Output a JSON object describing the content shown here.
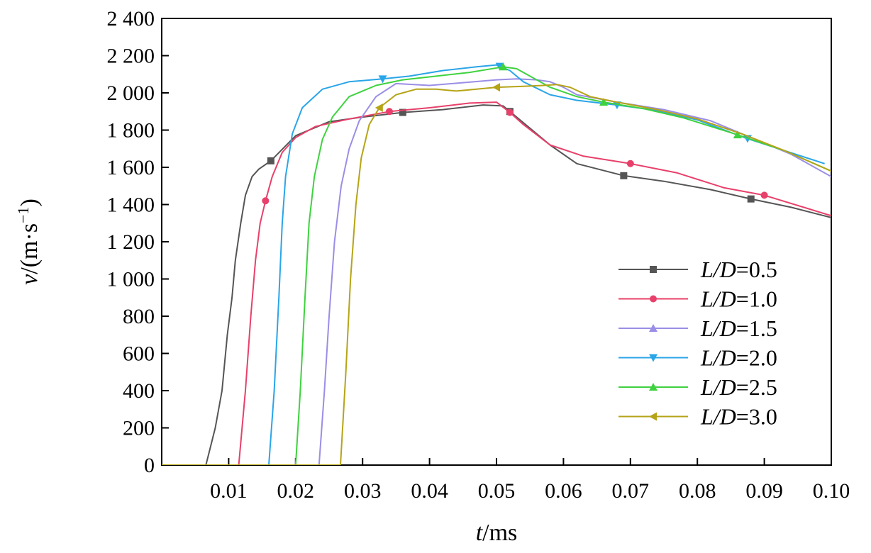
{
  "chart_data": {
    "type": "line",
    "title": "",
    "xlabel_var": "t",
    "xlabel_unit": "/ms",
    "ylabel_var": "v",
    "ylabel_unit": "/(m·s",
    "ylabel_exp": "−1",
    "ylabel_close": ")",
    "xlim": [
      0,
      0.1
    ],
    "ylim": [
      0,
      2400
    ],
    "x_ticks": [
      0.01,
      0.02,
      0.03,
      0.04,
      0.05,
      0.06,
      0.07,
      0.08,
      0.09,
      0.1
    ],
    "x_tick_labels": [
      "0.01",
      "0.02",
      "0.03",
      "0.04",
      "0.05",
      "0.06",
      "0.07",
      "0.08",
      "0.09",
      "0.10"
    ],
    "y_ticks": [
      0,
      200,
      400,
      600,
      800,
      1000,
      1200,
      1400,
      1600,
      1800,
      2000,
      2200,
      2400
    ],
    "y_tick_labels": [
      "0",
      "200",
      "400",
      "600",
      "800",
      "1 000",
      "1 200",
      "1 400",
      "1 600",
      "1 800",
      "2 000",
      "2 200",
      "2 400"
    ],
    "legend_position": "lower-right",
    "grid": false,
    "series": [
      {
        "name_var": "L/D",
        "name_val": "=0.5",
        "color": "#555555",
        "marker": "square",
        "x": [
          0,
          0.0066,
          0.008,
          0.009,
          0.0098,
          0.0105,
          0.011,
          0.0118,
          0.0125,
          0.0135,
          0.0145,
          0.0163,
          0.02,
          0.025,
          0.03,
          0.036,
          0.042,
          0.048,
          0.051,
          0.052,
          0.054,
          0.058,
          0.062,
          0.069,
          0.075,
          0.082,
          0.088,
          0.094,
          0.1
        ],
        "y": [
          0,
          0,
          200,
          400,
          700,
          900,
          1100,
          1300,
          1450,
          1550,
          1590,
          1635,
          1770,
          1845,
          1870,
          1895,
          1910,
          1935,
          1930,
          1900,
          1840,
          1720,
          1620,
          1555,
          1525,
          1480,
          1430,
          1385,
          1330
        ],
        "marker_x": [
          0.0163,
          0.036,
          0.052,
          0.069,
          0.088
        ]
      },
      {
        "name_var": "L/D",
        "name_val": "=1.0",
        "color": "#e8406a",
        "marker": "circle",
        "x": [
          0,
          0.0115,
          0.0125,
          0.0133,
          0.014,
          0.0147,
          0.0155,
          0.0165,
          0.018,
          0.02,
          0.023,
          0.028,
          0.034,
          0.04,
          0.046,
          0.05,
          0.052,
          0.054,
          0.058,
          0.063,
          0.07,
          0.077,
          0.084,
          0.09,
          0.1
        ],
        "y": [
          0,
          0,
          400,
          800,
          1100,
          1300,
          1420,
          1550,
          1680,
          1760,
          1820,
          1860,
          1900,
          1920,
          1945,
          1950,
          1895,
          1830,
          1720,
          1660,
          1620,
          1570,
          1490,
          1450,
          1340
        ],
        "marker_x": [
          0.0155,
          0.034,
          0.052,
          0.07,
          0.09
        ]
      },
      {
        "name_var": "L/D",
        "name_val": "=1.5",
        "color": "#9a8ee6",
        "marker": "triangle-up",
        "x": [
          0,
          0.0235,
          0.0243,
          0.025,
          0.0258,
          0.0268,
          0.028,
          0.0295,
          0.032,
          0.035,
          0.04,
          0.045,
          0.05,
          0.053,
          0.056,
          0.058,
          0.06,
          0.062,
          0.068,
          0.075,
          0.082,
          0.088,
          0.094,
          0.1
        ],
        "y": [
          0,
          0,
          400,
          800,
          1200,
          1500,
          1700,
          1850,
          1980,
          2050,
          2040,
          2055,
          2070,
          2075,
          2070,
          2060,
          2030,
          1990,
          1950,
          1910,
          1850,
          1760,
          1670,
          1550
        ],
        "marker_x": []
      },
      {
        "name_var": "L/D",
        "name_val": "=2.0",
        "color": "#2aa5e8",
        "marker": "triangle-down",
        "x": [
          0,
          0.016,
          0.0168,
          0.0175,
          0.018,
          0.0185,
          0.0195,
          0.021,
          0.024,
          0.028,
          0.033,
          0.037,
          0.042,
          0.047,
          0.05,
          0.052,
          0.054,
          0.058,
          0.062,
          0.068,
          0.074,
          0.08,
          0.087,
          0.093,
          0.099
        ],
        "y": [
          0,
          0,
          400,
          900,
          1300,
          1550,
          1780,
          1920,
          2020,
          2060,
          2075,
          2090,
          2120,
          2140,
          2150,
          2120,
          2060,
          1990,
          1960,
          1935,
          1905,
          1855,
          1760,
          1690,
          1620
        ],
        "marker_x": [
          0.033,
          0.0505,
          0.068,
          0.0875
        ]
      },
      {
        "name_var": "L/D",
        "name_val": "=2.5",
        "color": "#3fd23f",
        "marker": "triangle-up",
        "x": [
          0,
          0.02,
          0.0207,
          0.0214,
          0.022,
          0.0228,
          0.024,
          0.0255,
          0.028,
          0.032,
          0.036,
          0.041,
          0.046,
          0.051,
          0.053,
          0.055,
          0.058,
          0.062,
          0.066,
          0.072,
          0.078,
          0.086,
          0.093,
          0.1
        ],
        "y": [
          0,
          0,
          400,
          900,
          1300,
          1550,
          1750,
          1870,
          1980,
          2040,
          2070,
          2090,
          2110,
          2140,
          2130,
          2090,
          2030,
          1980,
          1950,
          1915,
          1865,
          1775,
          1690,
          1580
        ],
        "marker_x": [
          0.051,
          0.066,
          0.086
        ]
      },
      {
        "name_var": "L/D",
        "name_val": "=3.0",
        "color": "#b5a417",
        "marker": "triangle-left",
        "x": [
          0,
          0.0267,
          0.0275,
          0.0282,
          0.029,
          0.0298,
          0.031,
          0.0325,
          0.035,
          0.038,
          0.041,
          0.044,
          0.047,
          0.05,
          0.054,
          0.057,
          0.059,
          0.061,
          0.064,
          0.068,
          0.074,
          0.08,
          0.087,
          0.093,
          0.1
        ],
        "y": [
          0,
          0,
          500,
          1000,
          1400,
          1650,
          1830,
          1920,
          1990,
          2020,
          2020,
          2010,
          2020,
          2030,
          2035,
          2040,
          2045,
          2030,
          1980,
          1950,
          1910,
          1860,
          1775,
          1690,
          1580
        ],
        "marker_x": [
          0.0325,
          0.05
        ]
      }
    ]
  }
}
